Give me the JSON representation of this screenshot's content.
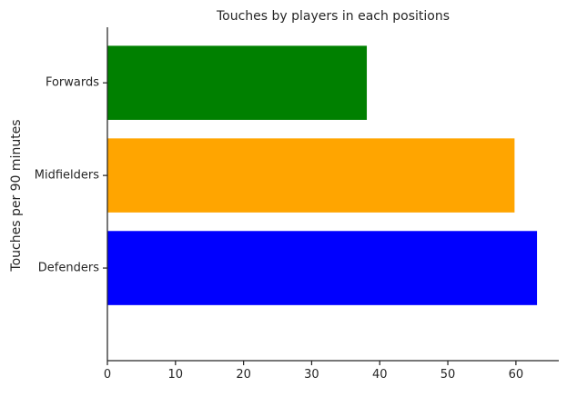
{
  "chart_data": {
    "type": "bar",
    "orientation": "horizontal",
    "title": "Touches by players in each positions",
    "xlabel": "",
    "ylabel": "Touches per 90 minutes",
    "categories": [
      "Defenders",
      "Midfielders",
      "Forwards"
    ],
    "values": [
      63.1,
      59.8,
      38.1
    ],
    "colors": [
      "#0000ff",
      "#ffa500",
      "#008000"
    ],
    "xlim": [
      0,
      66.3
    ],
    "xticks": [
      0,
      10,
      20,
      30,
      40,
      50,
      60
    ],
    "grid": false
  }
}
